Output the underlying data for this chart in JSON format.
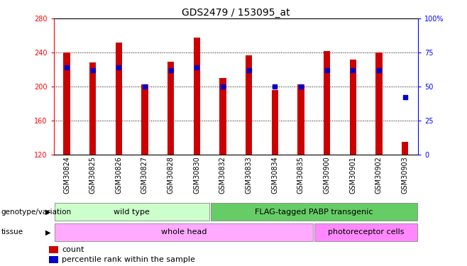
{
  "title": "GDS2479 / 153095_at",
  "samples": [
    "GSM30824",
    "GSM30825",
    "GSM30826",
    "GSM30827",
    "GSM30828",
    "GSM30830",
    "GSM30832",
    "GSM30833",
    "GSM30834",
    "GSM30835",
    "GSM30900",
    "GSM30901",
    "GSM30902",
    "GSM30903"
  ],
  "count_values": [
    240,
    228,
    252,
    202,
    229,
    258,
    210,
    237,
    196,
    202,
    242,
    232,
    240,
    135
  ],
  "percentile_values": [
    64,
    62,
    64,
    50,
    62,
    64,
    50,
    62,
    50,
    50,
    62,
    62,
    62,
    42
  ],
  "ylim_left": [
    120,
    280
  ],
  "ylim_right": [
    0,
    100
  ],
  "yticks_left": [
    120,
    160,
    200,
    240,
    280
  ],
  "yticks_right": [
    0,
    25,
    50,
    75,
    100
  ],
  "bar_color": "#cc0000",
  "dot_color": "#0000cc",
  "background_color": "#ffffff",
  "genotype_groups": [
    {
      "label": "wild type",
      "start": 0,
      "end": 6,
      "color": "#ccffcc"
    },
    {
      "label": "FLAG-tagged PABP transgenic",
      "start": 6,
      "end": 14,
      "color": "#66cc66"
    }
  ],
  "tissue_groups": [
    {
      "label": "whole head",
      "start": 0,
      "end": 10,
      "color": "#ffaaff"
    },
    {
      "label": "photoreceptor cells",
      "start": 10,
      "end": 14,
      "color": "#ff88ff"
    }
  ],
  "left_label_genotype": "genotype/variation",
  "left_label_tissue": "tissue",
  "legend_count_label": "count",
  "legend_percentile_label": "percentile rank within the sample",
  "title_fontsize": 10,
  "tick_fontsize": 7
}
